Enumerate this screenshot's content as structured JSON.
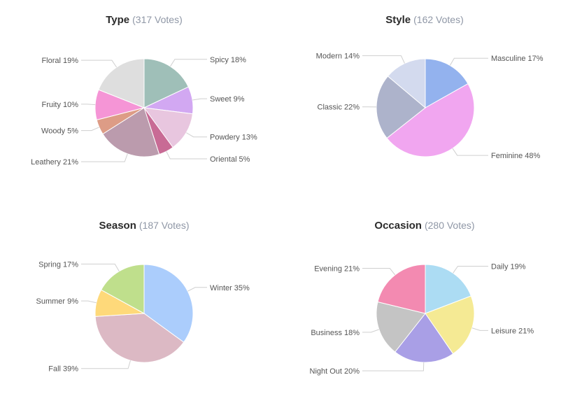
{
  "chart_data": [
    {
      "type": "pie",
      "title": "Type",
      "subtitle": "(317 Votes)",
      "slices": [
        {
          "label": "Spicy",
          "value": 18,
          "value_label": "18%",
          "color": "#9fbfb8"
        },
        {
          "label": "Sweet",
          "value": 9,
          "value_label": "9%",
          "color": "#d2a8f2"
        },
        {
          "label": "Powdery",
          "value": 13,
          "value_label": "13%",
          "color": "#e8c6df"
        },
        {
          "label": "Oriental",
          "value": 5,
          "value_label": "5%",
          "color": "#c86b95"
        },
        {
          "label": "Leathery",
          "value": 21,
          "value_label": "21%",
          "color": "#bb9bad"
        },
        {
          "label": "Woody",
          "value": 5,
          "value_label": "5%",
          "color": "#dd9c86"
        },
        {
          "label": "Fruity",
          "value": 10,
          "value_label": "10%",
          "color": "#f595d6"
        },
        {
          "label": "Floral",
          "value": 19,
          "value_label": "19%",
          "color": "#dedede"
        }
      ]
    },
    {
      "type": "pie",
      "title": "Style",
      "subtitle": "(162 Votes)",
      "slices": [
        {
          "label": "Masculine",
          "value": 17,
          "value_label": "17%",
          "color": "#93b2ee"
        },
        {
          "label": "Feminine",
          "value": 48,
          "value_label": "48%",
          "color": "#f1a6f0"
        },
        {
          "label": "Classic",
          "value": 22,
          "value_label": "22%",
          "color": "#adb3cb"
        },
        {
          "label": "Modern",
          "value": 14,
          "value_label": "14%",
          "color": "#d3daee"
        }
      ]
    },
    {
      "type": "pie",
      "title": "Season",
      "subtitle": "(187 Votes)",
      "slices": [
        {
          "label": "Winter",
          "value": 35,
          "value_label": "35%",
          "color": "#abcdfc"
        },
        {
          "label": "Fall",
          "value": 39,
          "value_label": "39%",
          "color": "#dcb9c4"
        },
        {
          "label": "Summer",
          "value": 9,
          "value_label": "9%",
          "color": "#fed97a"
        },
        {
          "label": "Spring",
          "value": 17,
          "value_label": "17%",
          "color": "#bfdf8c"
        }
      ]
    },
    {
      "type": "pie",
      "title": "Occasion",
      "subtitle": "(280 Votes)",
      "slices": [
        {
          "label": "Daily",
          "value": 19,
          "value_label": "19%",
          "color": "#acdcf3"
        },
        {
          "label": "Leisure",
          "value": 21,
          "value_label": "21%",
          "color": "#f5ea94"
        },
        {
          "label": "Night Out",
          "value": 20,
          "value_label": "20%",
          "color": "#a99fe6"
        },
        {
          "label": "Business",
          "value": 18,
          "value_label": "18%",
          "color": "#c4c4c4"
        },
        {
          "label": "Evening",
          "value": 21,
          "value_label": "21%",
          "color": "#f38ab1"
        }
      ]
    }
  ]
}
